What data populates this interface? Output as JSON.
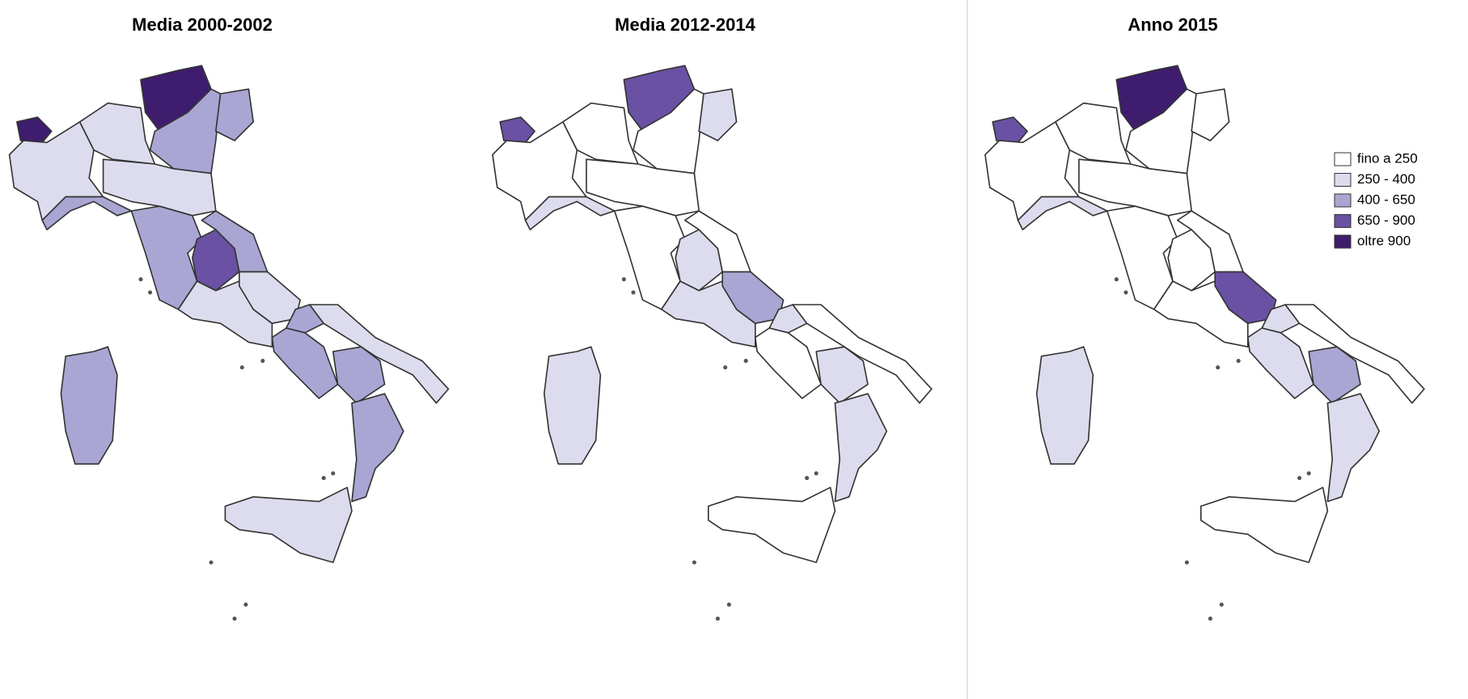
{
  "maps": [
    {
      "title": "Media 2000-2002"
    },
    {
      "title": "Media 2012-2014"
    },
    {
      "title": "Anno 2015"
    }
  ],
  "legend": {
    "items": [
      {
        "label": "fino a 250",
        "color": "#ffffff"
      },
      {
        "label": "250 - 400",
        "color": "#dcdcee"
      },
      {
        "label": "400 - 650",
        "color": "#a9a6d3"
      },
      {
        "label": "650 - 900",
        "color": "#6a51a3"
      },
      {
        "label": "oltre 900",
        "color": "#3f1d6e"
      }
    ]
  }
}
